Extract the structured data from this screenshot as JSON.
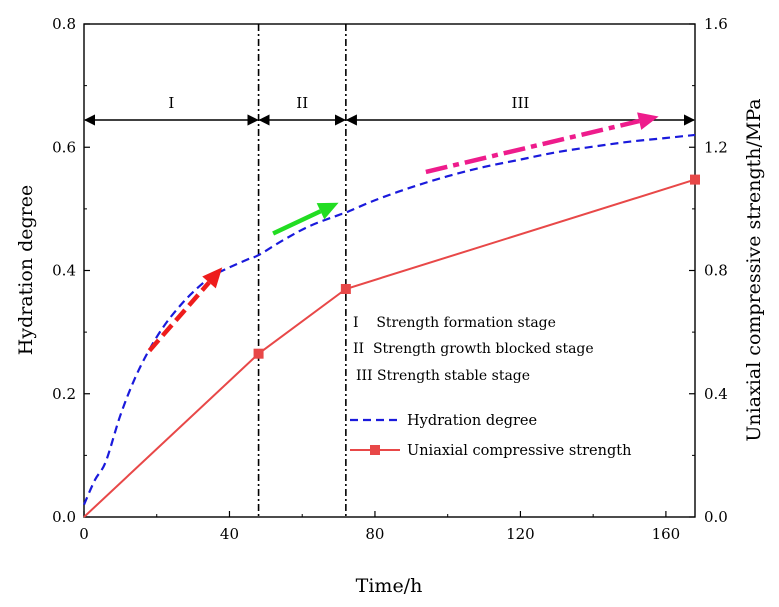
{
  "chart_data": {
    "type": "line",
    "xlabel": "Time/h",
    "ylabel_left": "Hydration degree",
    "ylabel_right": "Uniaxial compressive strength/MPa",
    "xlim": [
      0,
      168
    ],
    "ylim_left": [
      0,
      0.8
    ],
    "ylim_right": [
      0,
      1.6
    ],
    "x_ticks": [
      "0",
      "40",
      "80",
      "120",
      "160"
    ],
    "y_ticks_left": [
      "0.0",
      "0.2",
      "0.4",
      "0.6",
      "0.8"
    ],
    "y_ticks_right": [
      "0.0",
      "0.4",
      "0.8",
      "1.2",
      "1.6"
    ],
    "series": [
      {
        "name": "Hydration degree",
        "axis": "left",
        "style": "dashed",
        "color": "#1a1adc",
        "x": [
          0,
          3,
          6,
          10,
          14,
          18,
          22,
          26,
          30,
          35,
          40,
          45,
          48,
          55,
          62,
          70,
          72,
          80,
          90,
          100,
          110,
          120,
          130,
          140,
          150,
          160,
          168
        ],
        "y": [
          0.02,
          0.06,
          0.09,
          0.165,
          0.225,
          0.272,
          0.31,
          0.34,
          0.365,
          0.39,
          0.405,
          0.418,
          0.425,
          0.45,
          0.472,
          0.49,
          0.494,
          0.514,
          0.535,
          0.553,
          0.568,
          0.58,
          0.592,
          0.601,
          0.609,
          0.615,
          0.62
        ]
      },
      {
        "name": "Uniaxial compressive strength",
        "axis": "right",
        "style": "solid-square-marker",
        "color": "#e84848",
        "x": [
          0,
          48,
          72,
          168
        ],
        "y": [
          0.0,
          0.53,
          0.74,
          1.095
        ]
      }
    ],
    "stage_boundaries": [
      48,
      72
    ],
    "stages": [
      {
        "label": "I",
        "from": 0,
        "to": 48
      },
      {
        "label": "II",
        "from": 48,
        "to": 72
      },
      {
        "label": "III",
        "from": 72,
        "to": 168
      }
    ],
    "stage_descriptions": [
      "I    Strength formation stage",
      "II  Strength growth blocked stage",
      "III Strength stable stage"
    ],
    "trend_arrows": [
      {
        "color": "#ee1c1c",
        "style": "dashed",
        "from": [
          18,
          0.27
        ],
        "to": [
          38,
          0.405
        ]
      },
      {
        "color": "#22dd22",
        "style": "solid",
        "from": [
          52,
          0.46
        ],
        "to": [
          70,
          0.51
        ]
      },
      {
        "color": "#ee1c8c",
        "style": "dash-dot",
        "from": [
          94,
          0.56
        ],
        "to": [
          158,
          0.65
        ]
      }
    ],
    "legend": [
      "Hydration degree",
      "Uniaxial compressive strength"
    ],
    "legend_position": "center-right",
    "grid": false
  }
}
